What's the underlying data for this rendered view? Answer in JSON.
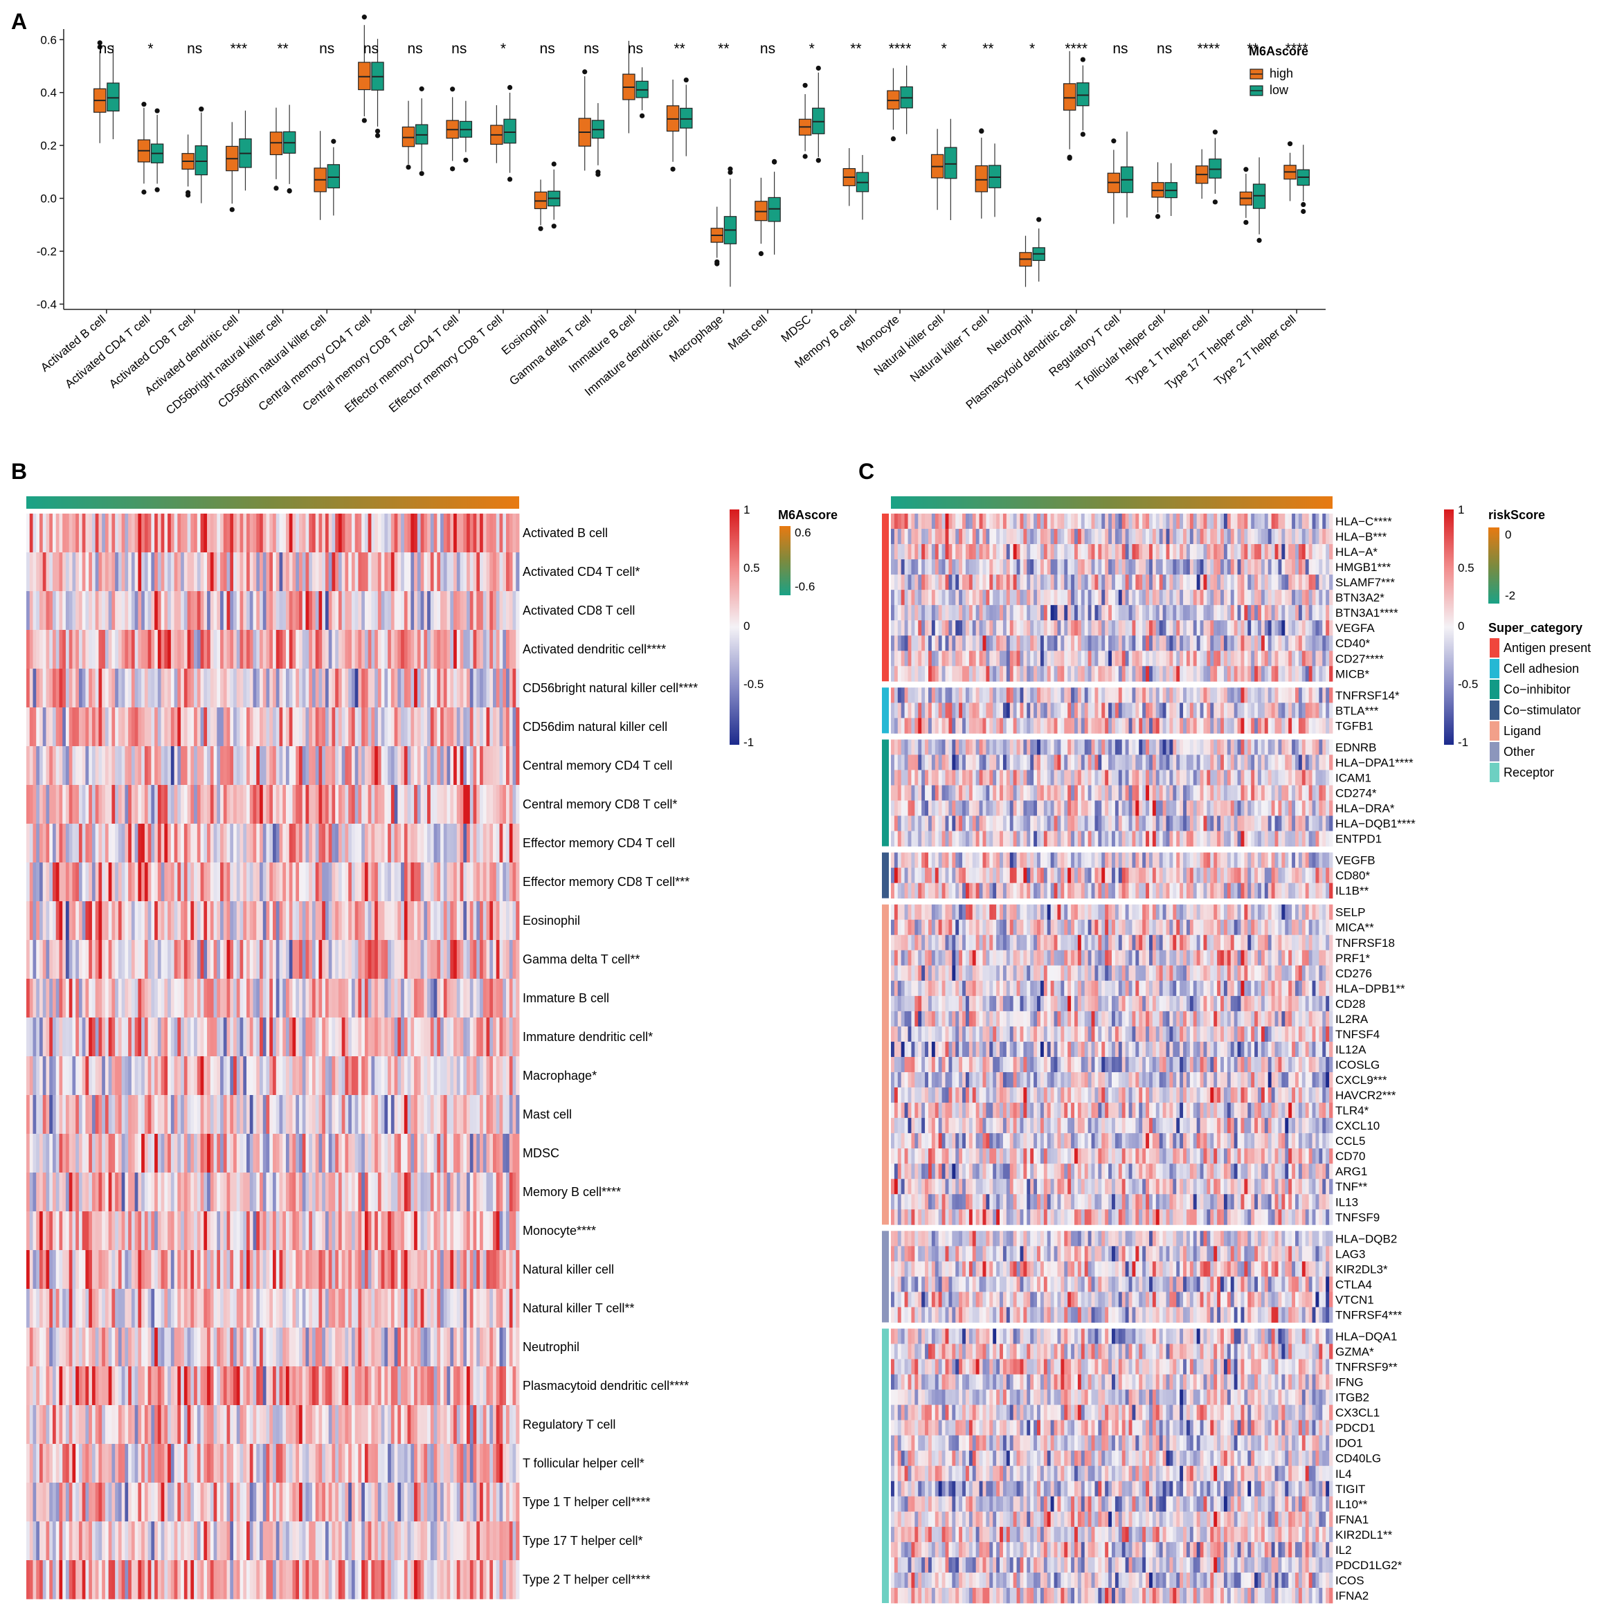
{
  "panels": {
    "a": "A",
    "b": "B",
    "c": "C"
  },
  "colors": {
    "high": "#e8711c",
    "low": "#169e82",
    "red": "#d7191c",
    "blue": "#1c2a8c",
    "score_high": "#e87a12",
    "score_low": "#1aa286"
  },
  "chart_data": [
    {
      "type": "boxplot",
      "panel": "A",
      "y_ticks": [
        "0.6",
        "0.4",
        "0.2",
        "0.0",
        "-0.2",
        "-0.4"
      ],
      "ylim": [
        -0.42,
        0.64
      ],
      "legend": {
        "title": "M6Ascore",
        "items": [
          "high",
          "low"
        ],
        "position": "top-right"
      },
      "categories": [
        "Activated B cell",
        "Activated CD4 T cell",
        "Activated CD8 T cell",
        "Activated dendritic cell",
        "CD56bright natural killer cell",
        "CD56dim natural killer cell",
        "Central memory CD4 T cell",
        "Central memory CD8 T cell",
        "Effector memory CD4 T cell",
        "Effector memory CD8 T cell",
        "Eosinophil",
        "Gamma delta T cell",
        "Immature  B cell",
        "Immature dendritic cell",
        "Macrophage",
        "Mast cell",
        "MDSC",
        "Memory B cell",
        "Monocyte",
        "Natural killer cell",
        "Natural killer T cell",
        "Neutrophil",
        "Plasmacytoid dendritic cell",
        "Regulatory T cell",
        "T follicular helper cell",
        "Type 1 T helper cell",
        "Type 17 T helper cell",
        "Type 2 T helper cell"
      ],
      "significance": [
        "ns",
        "*",
        "ns",
        "***",
        "**",
        "ns",
        "ns",
        "ns",
        "ns",
        "*",
        "ns",
        "ns",
        "ns",
        "**",
        "**",
        "ns",
        "*",
        "**",
        "****",
        "*",
        "**",
        "*",
        "****",
        "ns",
        "ns",
        "****",
        "**",
        "****"
      ],
      "series": [
        {
          "name": "high",
          "medians": [
            0.37,
            0.18,
            0.14,
            0.15,
            0.21,
            0.07,
            0.46,
            0.23,
            0.26,
            0.24,
            -0.01,
            0.25,
            0.42,
            0.3,
            -0.14,
            -0.05,
            0.27,
            0.08,
            0.37,
            0.12,
            0.07,
            -0.23,
            0.38,
            0.06,
            0.03,
            0.09,
            0.0,
            0.1
          ]
        },
        {
          "name": "low",
          "medians": [
            0.38,
            0.17,
            0.14,
            0.17,
            0.21,
            0.08,
            0.46,
            0.24,
            0.26,
            0.25,
            0.0,
            0.26,
            0.41,
            0.3,
            -0.12,
            -0.04,
            0.29,
            0.06,
            0.38,
            0.13,
            0.08,
            -0.21,
            0.39,
            0.07,
            0.03,
            0.11,
            0.01,
            0.08
          ]
        }
      ]
    },
    {
      "type": "heatmap",
      "panel": "B",
      "annotation": {
        "title": "M6Ascore",
        "max": "0.6",
        "min": "-0.6"
      },
      "color_scale": {
        "labels": [
          "1",
          "0.5",
          "0",
          "-0.5",
          "-1"
        ]
      },
      "rows": [
        "Activated B cell",
        "Activated CD4 T cell*",
        "Activated CD8 T cell",
        "Activated dendritic cell****",
        "CD56bright natural killer cell****",
        "CD56dim natural killer cell",
        "Central memory CD4 T cell",
        "Central memory CD8 T cell*",
        "Effector memory CD4 T cell",
        "Effector memory CD8 T cell***",
        "Eosinophil",
        "Gamma delta T cell**",
        "Immature  B cell",
        "Immature dendritic cell*",
        "Macrophage*",
        "Mast cell",
        "MDSC",
        "Memory B cell****",
        "Monocyte****",
        "Natural killer cell",
        "Natural killer T cell**",
        "Neutrophil",
        "Plasmacytoid dendritic cell****",
        "Regulatory T cell",
        "T follicular helper cell*",
        "Type 1 T helper cell****",
        "Type 17 T helper cell*",
        "Type 2 T helper cell****"
      ]
    },
    {
      "type": "heatmap",
      "panel": "C",
      "annotation": {
        "title": "riskScore",
        "max": "0",
        "min": "-2"
      },
      "color_scale": {
        "labels": [
          "1",
          "0.5",
          "0",
          "-0.5",
          "-1"
        ]
      },
      "category_legend": {
        "title": "Super_category",
        "items": [
          {
            "name": "Antigen present",
            "color": "#f0463c"
          },
          {
            "name": "Cell adhesion",
            "color": "#25b8d4"
          },
          {
            "name": "Co−inhibitor",
            "color": "#129a86"
          },
          {
            "name": "Co−stimulator",
            "color": "#3a5a88"
          },
          {
            "name": "Ligand",
            "color": "#f2a08a"
          },
          {
            "name": "Other",
            "color": "#8c96bc"
          },
          {
            "name": "Receptor",
            "color": "#6dd0c2"
          }
        ]
      },
      "groups": [
        {
          "category": "Antigen present",
          "genes": [
            "HLA−C****",
            "HLA−B***",
            "HLA−A*",
            "HMGB1***",
            "SLAMF7***",
            "BTN3A2*",
            "BTN3A1****",
            "VEGFA",
            "CD40*",
            "CD27****",
            "MICB*"
          ]
        },
        {
          "category": "Cell adhesion",
          "genes": [
            "TNFRSF14*",
            "BTLA***",
            "TGFB1"
          ]
        },
        {
          "category": "Co−inhibitor",
          "genes": [
            "EDNRB",
            "HLA−DPA1****",
            "ICAM1",
            "CD274*",
            "HLA−DRA*",
            "HLA−DQB1****",
            "ENTPD1"
          ]
        },
        {
          "category": "Co−stimulator",
          "genes": [
            "VEGFB",
            "CD80*",
            "IL1B**"
          ]
        },
        {
          "category": "Ligand",
          "genes": [
            "SELP",
            "MICA**",
            "TNFRSF18",
            "PRF1*",
            "CD276",
            "HLA−DPB1**",
            "CD28",
            "IL2RA",
            "TNFSF4",
            "IL12A",
            "ICOSLG",
            "CXCL9***",
            "HAVCR2***",
            "TLR4*",
            "CXCL10",
            "CCL5",
            "CD70",
            "ARG1",
            "TNF**",
            "IL13",
            "TNFSF9"
          ]
        },
        {
          "category": "Other",
          "genes": [
            "HLA−DQB2",
            "LAG3",
            "KIR2DL3*",
            "CTLA4",
            "VTCN1",
            "TNFRSF4***"
          ]
        },
        {
          "category": "Receptor",
          "genes": [
            "HLA−DQA1",
            "GZMA*",
            "TNFRSF9**",
            "IFNG",
            "ITGB2",
            "CX3CL1",
            "PDCD1",
            "IDO1",
            "CD40LG",
            "IL4",
            "TIGIT",
            "IL10**",
            "IFNA1",
            "KIR2DL1**",
            "IL2",
            "PDCD1LG2*",
            "ICOS",
            "IFNA2"
          ]
        }
      ]
    }
  ]
}
